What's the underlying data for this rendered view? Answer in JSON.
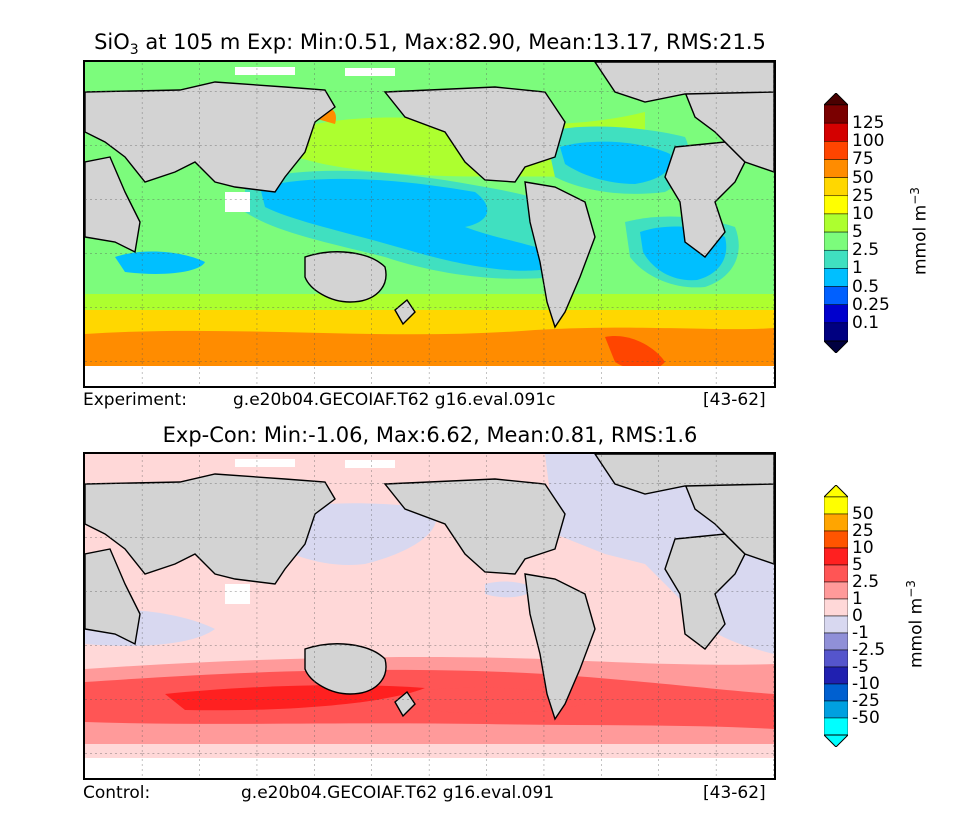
{
  "top_panel": {
    "title_prefix": "SiO",
    "title_sub": "3",
    "title_rest": " at 105 m Exp: Min:0.51, Max:82.90, Mean:13.17, RMS:21.5",
    "caption_label": "Experiment:",
    "caption_case": "g.e20b04.GECOIAF.T62 g16.eval.091c",
    "caption_years": "[43-62]",
    "units_main": "mmol m",
    "units_exp": "−3",
    "colorbar": {
      "labels": [
        "125",
        "100",
        "75",
        "50",
        "25",
        "10",
        "5",
        "2.5",
        "1",
        "0.5",
        "0.25",
        "0.1"
      ],
      "colors": [
        "#7a0000",
        "#d40000",
        "#ff4500",
        "#ff8c00",
        "#ffd700",
        "#ffff00",
        "#adff2f",
        "#7cfc7c",
        "#40e0c0",
        "#00bfff",
        "#0060ff",
        "#0000cd",
        "#000080"
      ],
      "top_cap_color": "#4a0000",
      "bottom_cap_color": "#000040"
    }
  },
  "bottom_panel": {
    "title": "Exp-Con: Min:-1.06, Max:6.62, Mean:0.81, RMS:1.6",
    "caption_label": "Control:",
    "caption_case": "g.e20b04.GECOIAF.T62 g16.eval.091",
    "caption_years": "[43-62]",
    "units_main": "mmol m",
    "units_exp": "−3",
    "colorbar": {
      "labels": [
        "50",
        "25",
        "10",
        "5",
        "2.5",
        "1",
        "0",
        "-1",
        "-2.5",
        "-5",
        "-10",
        "-25",
        "-50"
      ],
      "colors": [
        "#ffff00",
        "#ffa500",
        "#ff5500",
        "#ff2020",
        "#ff5555",
        "#ff9a9a",
        "#ffd8d8",
        "#d8d8f0",
        "#9090d8",
        "#5555cc",
        "#2020b0",
        "#0060d0",
        "#00a0e0",
        "#00ffff"
      ],
      "top_cap_color": "#ffff00",
      "bottom_cap_color": "#00ffff"
    }
  }
}
